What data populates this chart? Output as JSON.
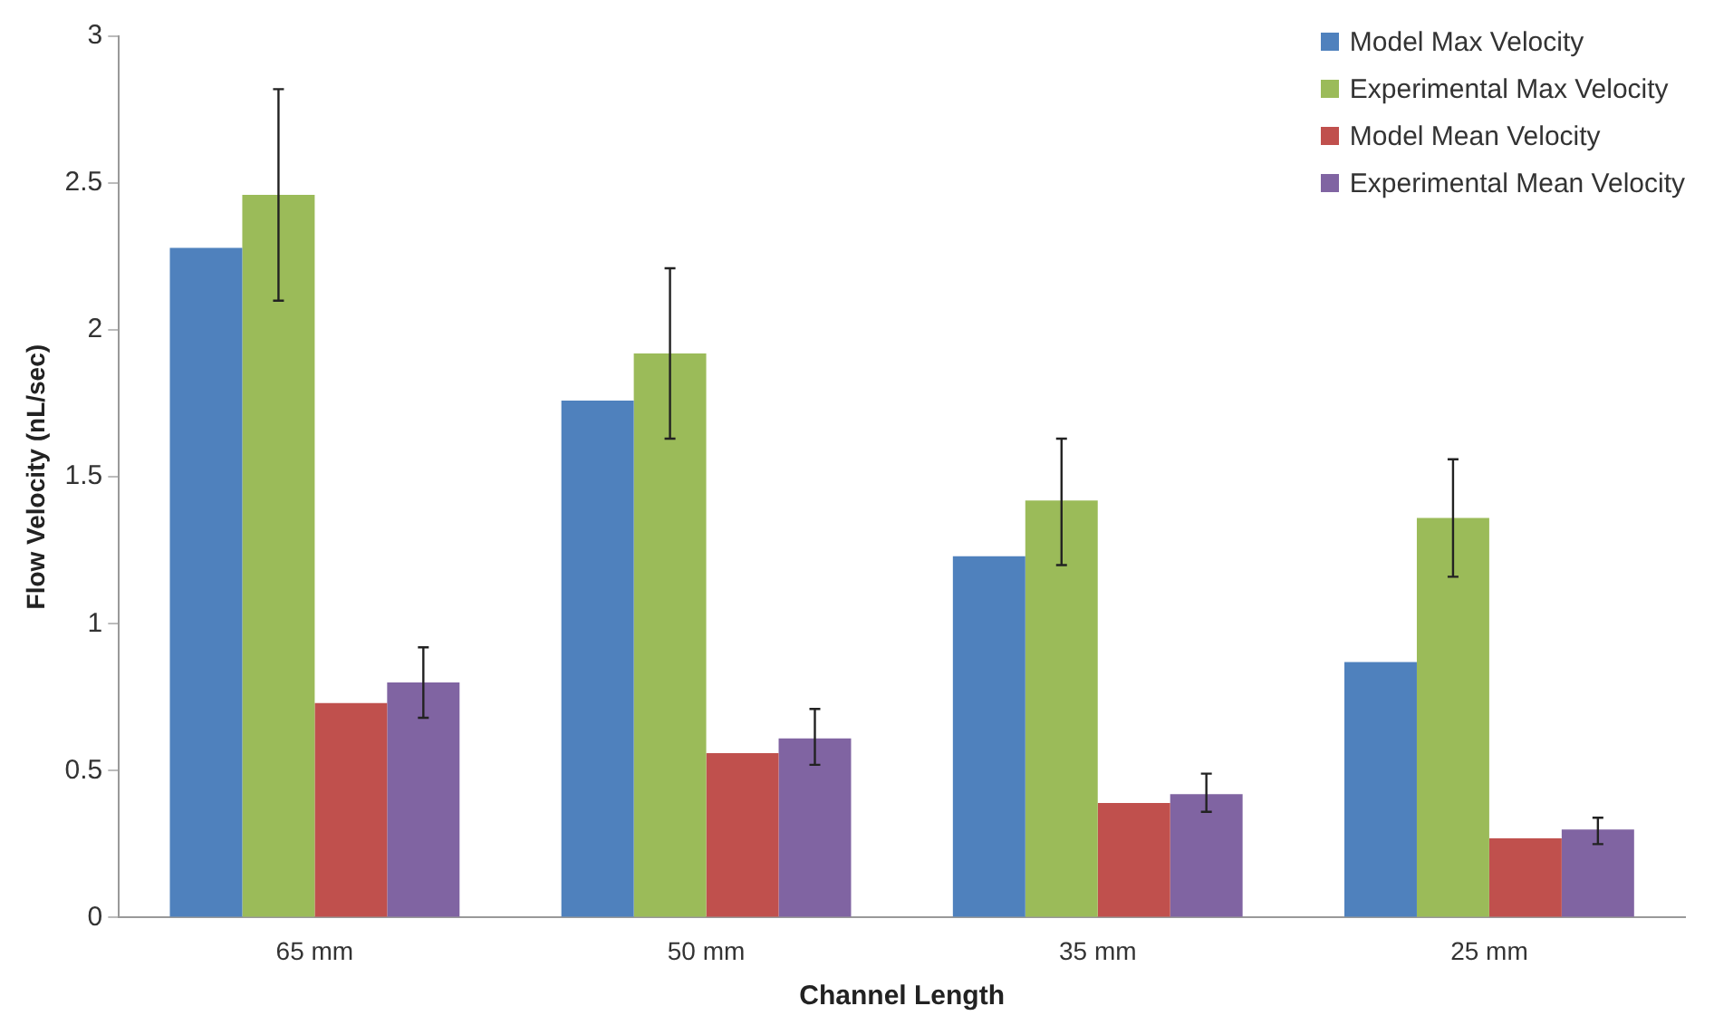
{
  "chart_data": {
    "type": "bar",
    "xlabel": "Channel Length",
    "ylabel": "Flow Velocity (nL/sec)",
    "categories": [
      "65 mm",
      "50 mm",
      "35 mm",
      "25 mm"
    ],
    "series": [
      {
        "name": "Model Max Velocity",
        "color": "#4f81bd",
        "values": [
          2.28,
          1.76,
          1.23,
          0.87
        ]
      },
      {
        "name": "Experimental Max Velocity",
        "color": "#9bbb59",
        "values": [
          2.46,
          1.92,
          1.42,
          1.36
        ],
        "errors": [
          [
            2.1,
            2.82
          ],
          [
            1.63,
            2.21
          ],
          [
            1.2,
            1.63
          ],
          [
            1.16,
            1.56
          ]
        ]
      },
      {
        "name": "Model Mean Velocity",
        "color": "#c0504d",
        "values": [
          0.73,
          0.56,
          0.39,
          0.27
        ]
      },
      {
        "name": "Experimental Mean Velocity",
        "color": "#8064a2",
        "values": [
          0.8,
          0.61,
          0.42,
          0.3
        ],
        "errors": [
          [
            0.68,
            0.92
          ],
          [
            0.52,
            0.71
          ],
          [
            0.36,
            0.49
          ],
          [
            0.25,
            0.34
          ]
        ]
      }
    ],
    "ylim": [
      0,
      3
    ],
    "yticks": [
      0,
      0.5,
      1,
      1.5,
      2,
      2.5,
      3
    ],
    "grid": false,
    "legend": "top right"
  }
}
